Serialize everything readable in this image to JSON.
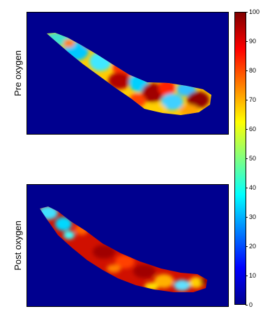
{
  "panels": [
    {
      "id": "pre",
      "label": "Pre oxygen"
    },
    {
      "id": "post",
      "label": "Post oxygen"
    }
  ],
  "colorbar": {
    "min": 0,
    "max": 100,
    "ticks": [
      "0",
      "10",
      "20",
      "30",
      "40",
      "50",
      "60",
      "70",
      "80",
      "90",
      "100"
    ],
    "colormap": "jet",
    "colors": [
      "#00008f",
      "#0000ff",
      "#0080ff",
      "#00ffff",
      "#80ff80",
      "#ffff00",
      "#ff8000",
      "#ff0000",
      "#800000"
    ]
  },
  "background_color": "#00008f"
}
